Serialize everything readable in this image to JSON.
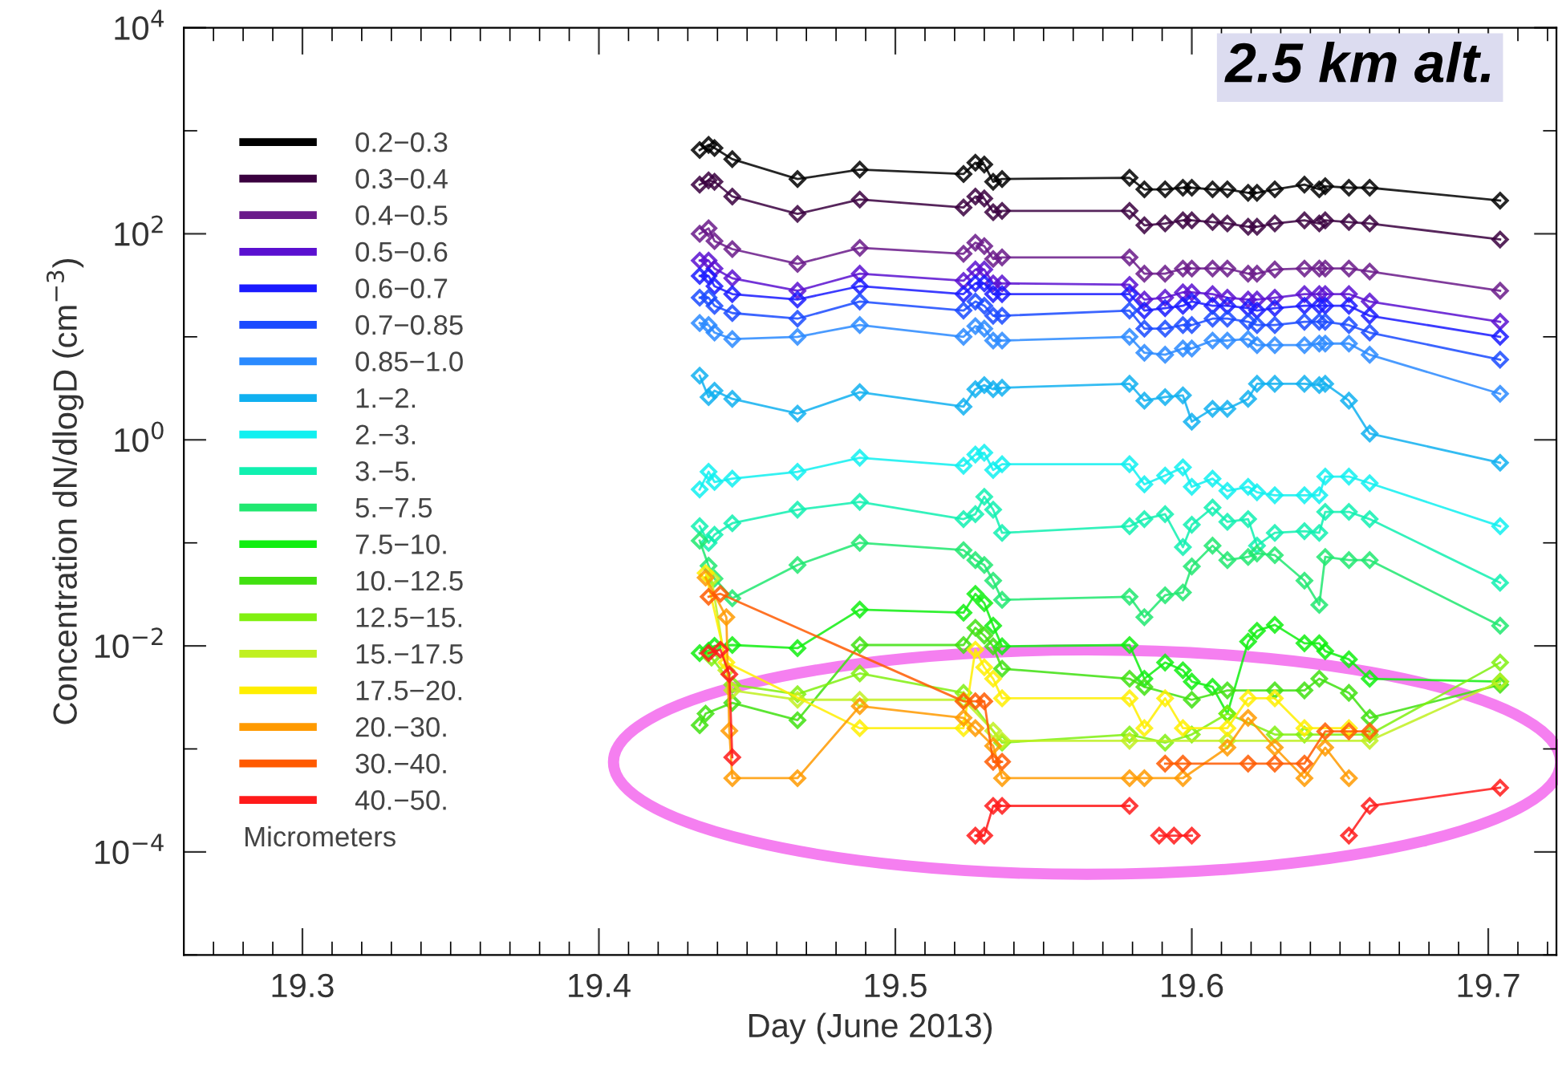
{
  "chart_data": {
    "type": "line",
    "xlabel": "Day (June 2013)",
    "ylabel": "Concentration dN/dlogD (cm$^{−3}$)",
    "legend_title": "Micrometers",
    "legend": "top left",
    "marker": "diamond",
    "line_style": "solid",
    "log": "y",
    "xlim": [
      19.26,
      19.723
    ],
    "ylim": [
      1e-05,
      10000
    ],
    "xticks": [
      {
        "value": 19.27,
        "label": null
      },
      {
        "value": 19.28,
        "label": null
      },
      {
        "value": 19.29,
        "label": null
      },
      19.3,
      {
        "value": 19.31,
        "label": null
      },
      {
        "value": 19.32,
        "label": null
      },
      {
        "value": 19.33,
        "label": null
      },
      {
        "value": 19.34,
        "label": null
      },
      {
        "value": 19.35,
        "label": null
      },
      {
        "value": 19.36,
        "label": null
      },
      {
        "value": 19.37,
        "label": null
      },
      {
        "value": 19.38,
        "label": null
      },
      {
        "value": 19.39,
        "label": null
      },
      19.4,
      {
        "value": 19.41,
        "label": null
      },
      {
        "value": 19.42,
        "label": null
      },
      {
        "value": 19.43,
        "label": null
      },
      {
        "value": 19.44,
        "label": null
      },
      {
        "value": 19.45,
        "label": null
      },
      {
        "value": 19.46,
        "label": null
      },
      {
        "value": 19.47,
        "label": null
      },
      {
        "value": 19.48,
        "label": null
      },
      {
        "value": 19.49,
        "label": null
      },
      19.5,
      {
        "value": 19.51,
        "label": null
      },
      {
        "value": 19.52,
        "label": null
      },
      {
        "value": 19.53,
        "label": null
      },
      {
        "value": 19.54,
        "label": null
      },
      {
        "value": 19.55,
        "label": null
      },
      {
        "value": 19.56,
        "label": null
      },
      {
        "value": 19.57,
        "label": null
      },
      {
        "value": 19.58,
        "label": null
      },
      {
        "value": 19.59,
        "label": null
      },
      19.6,
      {
        "value": 19.61,
        "label": null
      },
      {
        "value": 19.62,
        "label": null
      },
      {
        "value": 19.63,
        "label": null
      },
      {
        "value": 19.64,
        "label": null
      },
      {
        "value": 19.65,
        "label": null
      },
      {
        "value": 19.66,
        "label": null
      },
      {
        "value": 19.67,
        "label": null
      },
      {
        "value": 19.68,
        "label": null
      },
      {
        "value": 19.69,
        "label": null
      },
      19.7,
      {
        "value": 19.71,
        "label": null
      },
      {
        "value": 19.72,
        "label": null
      }
    ],
    "yticks": [
      {
        "value": 1e-05,
        "label": null
      },
      {
        "value": 0.0001,
        "label": "10$^{−4}$"
      },
      {
        "value": 0.001,
        "label": null
      },
      {
        "value": 0.01,
        "label": "10$^{−2}$"
      },
      {
        "value": 0.1,
        "label": null
      },
      {
        "value": 1,
        "label": "10$^{0}$"
      },
      {
        "value": 10,
        "label": null
      },
      {
        "value": 100,
        "label": "10$^{2}$"
      },
      {
        "value": 1000,
        "label": null
      },
      {
        "value": 10000,
        "label": "10$^{4}$"
      }
    ],
    "annotations": [
      "2.5 km alt."
    ],
    "x": [
      19.434,
      19.437,
      19.439,
      19.445,
      19.467,
      19.488,
      19.523,
      19.527,
      19.53,
      19.533,
      19.536,
      19.579,
      19.584,
      19.591,
      19.597,
      19.6,
      19.607,
      19.612,
      19.619,
      19.622,
      19.628,
      19.638,
      19.643,
      19.645,
      19.653,
      19.66,
      19.704
    ],
    "series": [
      {
        "name": "0.2−0.3",
        "color": "#000000",
        "values": [
          650,
          730,
          680,
          530,
          340,
          420,
          380,
          490,
          470,
          320,
          340,
          350,
          270,
          270,
          280,
          280,
          270,
          270,
          250,
          250,
          270,
          300,
          270,
          290,
          280,
          280,
          210
        ]
      },
      {
        "name": "0.3−0.4",
        "color": "#3a003f",
        "values": [
          300,
          330,
          320,
          230,
          156,
          215,
          180,
          230,
          220,
          162,
          167,
          167,
          121,
          126,
          135,
          135,
          130,
          126,
          117,
          117,
          126,
          135,
          126,
          135,
          130,
          126,
          88
        ]
      },
      {
        "name": "0.4−0.5",
        "color": "#6a1a8a",
        "values": [
          100,
          113,
          85,
          71,
          51,
          73,
          64,
          82,
          76,
          57,
          59,
          59,
          41,
          41,
          46,
          46,
          46,
          46,
          41,
          41,
          45,
          46,
          46,
          46,
          46,
          43,
          28
        ]
      },
      {
        "name": "0.5−0.6",
        "color": "#5a10d0",
        "values": [
          55,
          55,
          46,
          37,
          28,
          41,
          35,
          45,
          45,
          33,
          33,
          32,
          23,
          24,
          27,
          27,
          26,
          24,
          23,
          23,
          24,
          26,
          26,
          26,
          26,
          22,
          14
        ]
      },
      {
        "name": "0.6−0.7",
        "color": "#1a1aff",
        "values": [
          39,
          39,
          31,
          26,
          23,
          31,
          26,
          33,
          33,
          26,
          26,
          26,
          18,
          19,
          20,
          22,
          20,
          20,
          19,
          18,
          19,
          20,
          20,
          20,
          20,
          16,
          10
        ]
      },
      {
        "name": "0.7−0.85",
        "color": "#1a4aff",
        "values": [
          24,
          24,
          20,
          17,
          15,
          22,
          18,
          22,
          20,
          16,
          16,
          18,
          12,
          12,
          13,
          13,
          15,
          15,
          14,
          13,
          13,
          14,
          14,
          14,
          13,
          11,
          6
        ]
      },
      {
        "name": "0.85−1.0",
        "color": "#2a8aff",
        "values": [
          13.6,
          13,
          11,
          9.5,
          10,
          13,
          10,
          12.7,
          12,
          9.2,
          9.2,
          10,
          7,
          6.7,
          7.7,
          7.7,
          9.2,
          9.2,
          9.5,
          8.3,
          8.3,
          8.3,
          8.6,
          8.6,
          8.6,
          6.7,
          2.8
        ]
      },
      {
        "name": "1.−2.",
        "color": "#10b0f0",
        "values": [
          4.2,
          2.6,
          3.0,
          2.5,
          1.8,
          2.9,
          2.1,
          3.1,
          3.4,
          3.1,
          3.2,
          3.5,
          2.4,
          2.6,
          2.7,
          1.5,
          2.0,
          2.0,
          2.5,
          3.5,
          3.5,
          3.5,
          3.4,
          3.5,
          2.4,
          1.15,
          0.6
        ]
      },
      {
        "name": "2.−3.",
        "color": "#10f0f0",
        "values": [
          0.33,
          0.49,
          0.39,
          0.42,
          0.49,
          0.67,
          0.56,
          0.72,
          0.75,
          0.51,
          0.58,
          0.58,
          0.37,
          0.45,
          0.54,
          0.35,
          0.42,
          0.32,
          0.35,
          0.31,
          0.29,
          0.29,
          0.29,
          0.44,
          0.44,
          0.38,
          0.145
        ]
      },
      {
        "name": "3.−5.",
        "color": "#10f0b0",
        "values": [
          0.145,
          0.1,
          0.12,
          0.155,
          0.21,
          0.25,
          0.17,
          0.19,
          0.28,
          0.21,
          0.125,
          0.145,
          0.17,
          0.19,
          0.091,
          0.15,
          0.22,
          0.16,
          0.17,
          0.094,
          0.125,
          0.13,
          0.125,
          0.2,
          0.2,
          0.17,
          0.041
        ]
      },
      {
        "name": "5.−7.5",
        "color": "#20e870",
        "values": [
          0.105,
          0.06,
          0.045,
          0.029,
          0.061,
          0.1,
          0.085,
          0.068,
          0.061,
          0.043,
          0.028,
          0.03,
          0.019,
          0.031,
          0.033,
          0.059,
          0.094,
          0.068,
          0.073,
          0.079,
          0.076,
          0.043,
          0.025,
          0.073,
          0.068,
          0.068,
          0.0157
        ]
      },
      {
        "name": "7.5−10.",
        "color": "#10ee10",
        "values": [
          0.0085,
          0.009,
          0.01,
          0.0102,
          0.0095,
          0.0225,
          0.021,
          0.032,
          0.026,
          0.0157,
          0.0099,
          0.0102,
          0.0048,
          0.0069,
          0.0058,
          0.0045,
          0.004,
          0.0022,
          0.011,
          0.014,
          0.016,
          0.0106,
          0.0106,
          0.0089,
          0.0074,
          0.0048,
          0.0045
        ]
      },
      {
        "name": "10.−12.5",
        "color": "#40e010",
        "x": [
          19.434,
          19.436,
          19.445,
          19.467,
          19.488,
          19.523,
          19.527,
          19.53,
          19.533,
          19.536,
          19.579,
          19.584,
          19.6,
          19.612,
          19.628,
          19.638,
          19.643,
          19.653,
          19.66,
          19.704
        ],
        "values": [
          0.0017,
          0.0022,
          0.0028,
          0.0019,
          0.0102,
          0.0102,
          0.015,
          0.0126,
          0.0099,
          0.006,
          0.0048,
          0.004,
          0.003,
          0.0037,
          0.0037,
          0.0037,
          0.0048,
          0.0035,
          0.002,
          0.0042
        ]
      },
      {
        "name": "12.5−15.",
        "color": "#80f010",
        "x": [
          19.438,
          19.445,
          19.467,
          19.488,
          19.523,
          19.536,
          19.579,
          19.591,
          19.6,
          19.612,
          19.628,
          19.638,
          19.66,
          19.704
        ],
        "values": [
          0.0077,
          0.0042,
          0.0034,
          0.0054,
          0.0035,
          0.00115,
          0.00138,
          0.00115,
          0.00138,
          0.0022,
          0.00138,
          0.00138,
          0.00138,
          0.0069
        ]
      },
      {
        "name": "15.−17.5",
        "color": "#c0f020",
        "x": [
          19.438,
          19.443,
          19.445,
          19.467,
          19.488,
          19.523,
          19.533,
          19.536,
          19.579,
          19.612,
          19.66,
          19.704
        ],
        "values": [
          0.045,
          0.0058,
          0.0037,
          0.003,
          0.003,
          0.003,
          0.0015,
          0.0012,
          0.0012,
          0.0012,
          0.0012,
          0.0045
        ]
      },
      {
        "name": "17.5−20.",
        "color": "#ffee00",
        "x": [
          19.436,
          19.443,
          19.488,
          19.523,
          19.527,
          19.53,
          19.533,
          19.536,
          19.579,
          19.584,
          19.591,
          19.597,
          19.612,
          19.619,
          19.628,
          19.638,
          19.653
        ],
        "values": [
          0.051,
          0.0069,
          0.00159,
          0.00159,
          0.0092,
          0.0062,
          0.0048,
          0.0031,
          0.0031,
          0.00159,
          0.0031,
          0.00159,
          0.00159,
          0.0031,
          0.0031,
          0.00159,
          0.00159
        ]
      },
      {
        "name": "20.−30.",
        "color": "#ff9a00",
        "x": [
          19.436,
          19.443,
          19.444,
          19.445,
          19.467,
          19.488,
          19.523,
          19.527,
          19.533,
          19.536,
          19.579,
          19.584,
          19.597,
          19.612,
          19.619,
          19.628,
          19.638,
          19.645,
          19.653
        ],
        "values": [
          0.046,
          0.019,
          0.0015,
          0.00052,
          0.00052,
          0.0026,
          0.002,
          0.00159,
          0.00107,
          0.00052,
          0.00052,
          0.00052,
          0.00052,
          0.00103,
          0.002,
          0.00103,
          0.00052,
          0.00103,
          0.00052
        ]
      },
      {
        "name": "30.−40.",
        "color": "#ff5a00",
        "x": [
          19.437,
          19.441,
          19.523,
          19.527,
          19.53,
          19.533,
          19.536,
          19.56,
          19.591,
          19.597,
          19.619,
          19.628,
          19.638,
          19.645,
          19.653,
          19.66
        ],
        "values": [
          0.03,
          0.032,
          0.0029,
          0.0029,
          0.0029,
          0.00075,
          0.00075,
          null,
          0.00072,
          0.00072,
          0.00072,
          0.00072,
          0.00072,
          0.00148,
          0.00148,
          0.00148
        ]
      },
      {
        "name": "40.−50.",
        "color": "#ff1a1a",
        "x": [
          19.437,
          19.441,
          19.444,
          19.445,
          19.49,
          19.527,
          19.53,
          19.533,
          19.536,
          19.579,
          19.585,
          19.589,
          19.594,
          19.6,
          19.62,
          19.653,
          19.66,
          19.704
        ],
        "values": [
          0.0085,
          0.0092,
          0.0053,
          0.00083,
          null,
          0.000144,
          0.000144,
          0.00028,
          0.00028,
          0.00028,
          null,
          0.000144,
          0.000144,
          0.000144,
          null,
          0.000144,
          0.00028,
          0.00042
        ]
      }
    ]
  }
}
